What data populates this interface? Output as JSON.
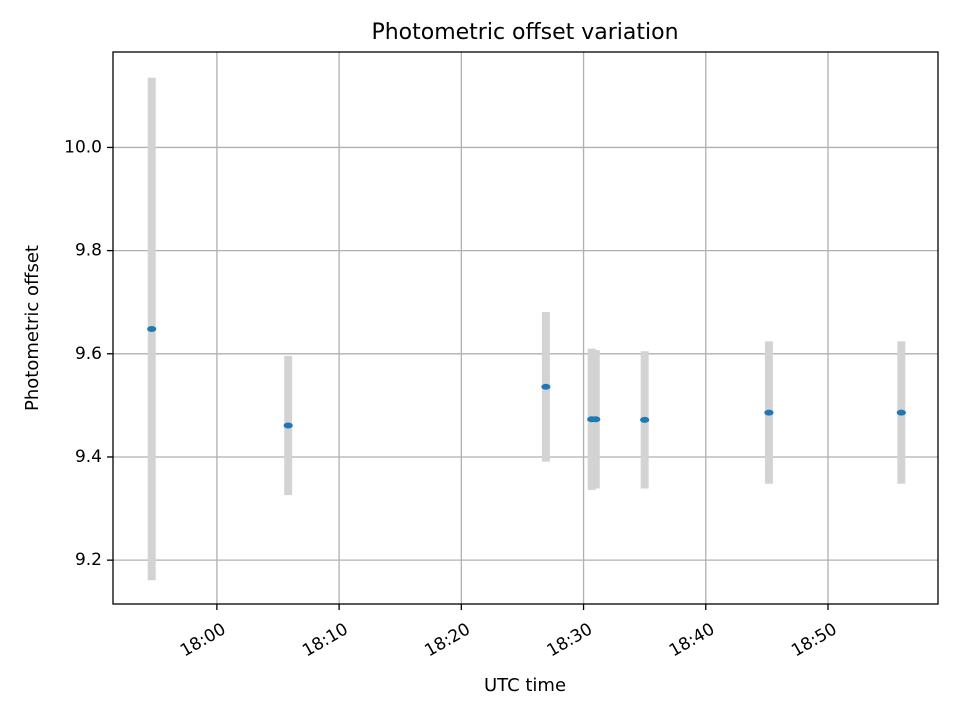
{
  "chart_data": {
    "type": "scatter",
    "title": "Photometric offset variation",
    "xlabel": "UTC time",
    "ylabel": "Photometric offset",
    "x_axis": "time",
    "xlim": [
      "17:51:30",
      "18:59:00"
    ],
    "ylim": [
      9.115,
      10.185
    ],
    "x_ticks": [
      "18:00",
      "18:10",
      "18:20",
      "18:30",
      "18:40",
      "18:50"
    ],
    "y_ticks": [
      9.2,
      9.4,
      9.6,
      9.8,
      10.0
    ],
    "y_tick_labels": [
      "9.2",
      "9.4",
      "9.6",
      "9.8",
      "10.0"
    ],
    "grid": true,
    "colors": {
      "point": "#1f77b4",
      "errorbar": "#d3d3d3"
    },
    "series": [
      {
        "x": [
          "17:54:40",
          "18:05:50",
          "18:26:55",
          "18:30:40",
          "18:31:00",
          "18:35:00",
          "18:45:10",
          "18:56:00"
        ],
        "y": [
          9.648,
          9.461,
          9.536,
          9.473,
          9.473,
          9.472,
          9.486,
          9.486
        ],
        "yerr": [
          0.487,
          0.135,
          0.145,
          0.137,
          0.134,
          0.133,
          0.138,
          0.138
        ]
      }
    ]
  }
}
